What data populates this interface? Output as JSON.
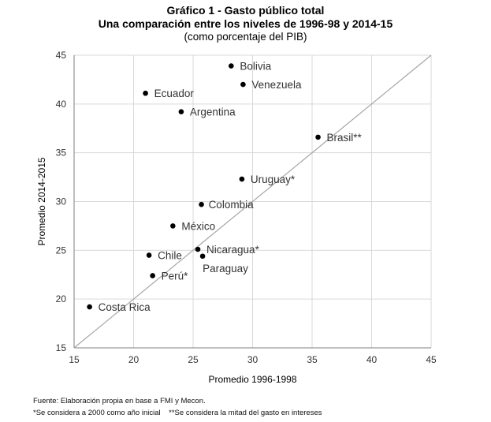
{
  "chart_data": {
    "type": "scatter",
    "title": "Gráfico 1 - Gasto público total",
    "subtitle": "Una comparación entre los niveles de 1996-98 y 2014-15",
    "subtitle2": "(como porcentaje del PIB)",
    "xlabel": "Promedio 1996-1998",
    "ylabel": "Promedio 2014-2015",
    "xlim": [
      15,
      45
    ],
    "ylim": [
      15,
      45
    ],
    "xticks": [
      15,
      20,
      25,
      30,
      35,
      40,
      45
    ],
    "yticks": [
      15,
      20,
      25,
      30,
      35,
      40,
      45
    ],
    "grid": true,
    "reference_line": "45-degree line (y = x)",
    "points": [
      {
        "label": "Bolivia",
        "x": 28.2,
        "y": 43.9
      },
      {
        "label": "Venezuela",
        "x": 29.2,
        "y": 42.0
      },
      {
        "label": "Ecuador",
        "x": 21.0,
        "y": 41.1
      },
      {
        "label": "Argentina",
        "x": 24.0,
        "y": 39.2
      },
      {
        "label": "Brasil**",
        "x": 35.5,
        "y": 36.6
      },
      {
        "label": "Uruguay*",
        "x": 29.1,
        "y": 32.3
      },
      {
        "label": "Colombia",
        "x": 25.7,
        "y": 29.7
      },
      {
        "label": "México",
        "x": 23.3,
        "y": 27.5
      },
      {
        "label": "Nicaragua*",
        "x": 25.4,
        "y": 25.1
      },
      {
        "label": "Chile",
        "x": 21.3,
        "y": 24.5
      },
      {
        "label": "Paraguay",
        "x": 25.8,
        "y": 24.4
      },
      {
        "label": "Perú*",
        "x": 21.6,
        "y": 22.4
      },
      {
        "label": "Costa Rica",
        "x": 16.3,
        "y": 19.2
      }
    ]
  },
  "footer": {
    "source": "Fuente: Elaboración propia en base a FMI y Mecon.",
    "notes": "*Se considera a 2000 como año inicial    **Se considera la mitad del gasto en intereses"
  }
}
